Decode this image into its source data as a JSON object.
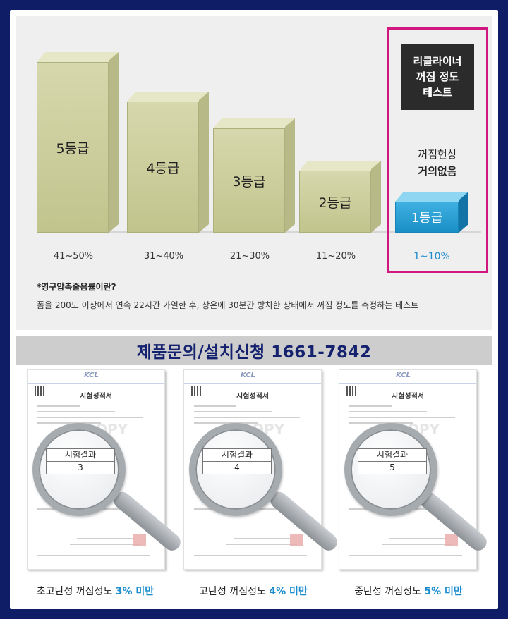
{
  "grades": [
    {
      "label": "5등급",
      "range": "41~50%"
    },
    {
      "label": "4등급",
      "range": "31~40%"
    },
    {
      "label": "3등급",
      "range": "21~30%"
    },
    {
      "label": "2등급",
      "range": "11~20%"
    },
    {
      "label": "1등급",
      "range": "1~10%"
    }
  ],
  "highlight": {
    "title_lines": [
      "리클라이너",
      "꺼짐 정도",
      "테스트"
    ],
    "result_line1": "꺼짐현상",
    "result_line2": "거의없음"
  },
  "note": {
    "title": "*영구압축줄음률이란?",
    "text": "폼을 200도 이상에서 연속 22시간 가열한 후, 상온에 30분간 방치한 상태에서 꺼짐 정도를 측정하는 테스트"
  },
  "contact": "제품문의/설치신청 1661-7842",
  "certificates": [
    {
      "doc_title": "시험성적서",
      "result_label": "시험결과",
      "result_value": "3",
      "caption_prefix": "초고탄성 꺼짐정도 ",
      "caption_value": "3% 미만"
    },
    {
      "doc_title": "시험성적서",
      "result_label": "시험결과",
      "result_value": "4",
      "caption_prefix": "고탄성 꺼짐정도 ",
      "caption_value": "4% 미만"
    },
    {
      "doc_title": "시험성적서",
      "result_label": "시험결과",
      "result_value": "5",
      "caption_prefix": "중탄성 꺼짐정도 ",
      "caption_value": "5% 미만"
    }
  ],
  "colors": {
    "frame": "#0f1d66",
    "accent_blue": "#1a8ccd",
    "highlight_border": "#d0177f",
    "box_olive": "#c8ca95"
  }
}
